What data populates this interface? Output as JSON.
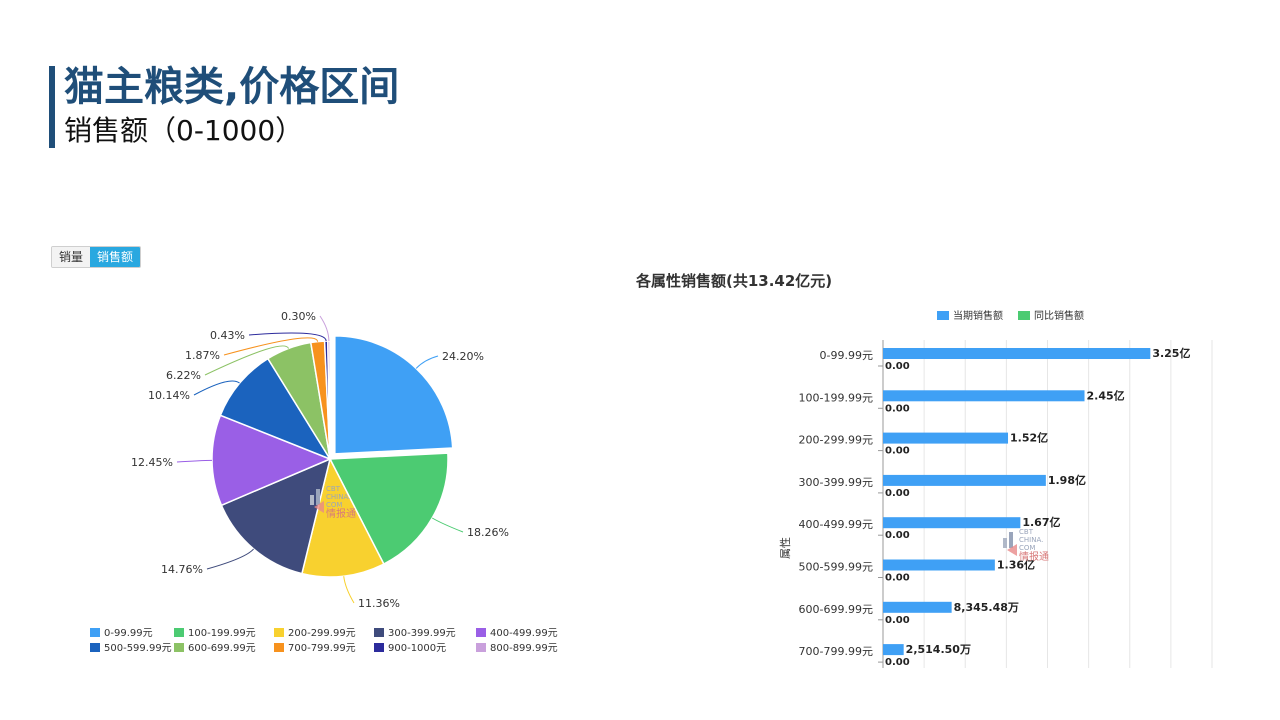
{
  "header": {
    "title": "猫主粮类,价格区间",
    "subtitle": "销售额（0-1000）"
  },
  "toggle": {
    "left_label": "销量",
    "right_label": "销售额",
    "selected": "销售额"
  },
  "watermark": {
    "line1": "CBT",
    "line2": "CHINA.",
    "line3": "COM",
    "line4": "情报通"
  },
  "chart_data": [
    {
      "type": "pie",
      "title": "",
      "legend_position": "bottom",
      "slices": [
        {
          "label": "0-99.99元",
          "value": 24.2,
          "value_label": "24.20%",
          "color": "#3fa0f5"
        },
        {
          "label": "100-199.99元",
          "value": 18.26,
          "value_label": "18.26%",
          "color": "#4ccb72"
        },
        {
          "label": "200-299.99元",
          "value": 11.36,
          "value_label": "11.36%",
          "color": "#f8d12f"
        },
        {
          "label": "300-399.99元",
          "value": 14.76,
          "value_label": "14.76%",
          "color": "#3f4b7c"
        },
        {
          "label": "400-499.99元",
          "value": 12.45,
          "value_label": "12.45%",
          "color": "#9a5fe6"
        },
        {
          "label": "500-599.99元",
          "value": 10.14,
          "value_label": "10.14%",
          "color": "#1b63be"
        },
        {
          "label": "600-699.99元",
          "value": 6.22,
          "value_label": "6.22%",
          "color": "#8cc265"
        },
        {
          "label": "700-799.99元",
          "value": 1.87,
          "value_label": "1.87%",
          "color": "#f7921e"
        },
        {
          "label": "900-1000元",
          "value": 0.43,
          "value_label": "0.43%",
          "color": "#2c2b9c"
        },
        {
          "label": "800-899.99元",
          "value": 0.3,
          "value_label": "0.30%",
          "color": "#c9a0dc"
        }
      ]
    },
    {
      "type": "bar",
      "orientation": "horizontal",
      "title": "各属性销售额(共13.42亿元)",
      "ylabel": "属性",
      "legend_position": "top",
      "categories": [
        "0-99.99元",
        "100-199.99元",
        "200-299.99元",
        "300-399.99元",
        "400-499.99元",
        "500-599.99元",
        "600-699.99元",
        "700-799.99元"
      ],
      "series": [
        {
          "name": "当期销售额",
          "color": "#3fa0f5",
          "values": [
            32500,
            24500,
            15200,
            19800,
            16700,
            13600,
            8345.48,
            2514.5
          ],
          "value_labels": [
            "3.25亿",
            "2.45亿",
            "1.52亿",
            "1.98亿",
            "1.67亿",
            "1.36亿",
            "8,345.48万",
            "2,514.50万"
          ]
        },
        {
          "name": "同比销售额",
          "color": "#4ccb72",
          "values": [
            0,
            0,
            0,
            0,
            0,
            0,
            0,
            0
          ],
          "value_labels": [
            "0.00",
            "0.00",
            "0.00",
            "0.00",
            "0.00",
            "0.00",
            "0.00",
            "0.00"
          ]
        }
      ],
      "xlim": [
        0,
        40000
      ],
      "grid": true
    }
  ]
}
